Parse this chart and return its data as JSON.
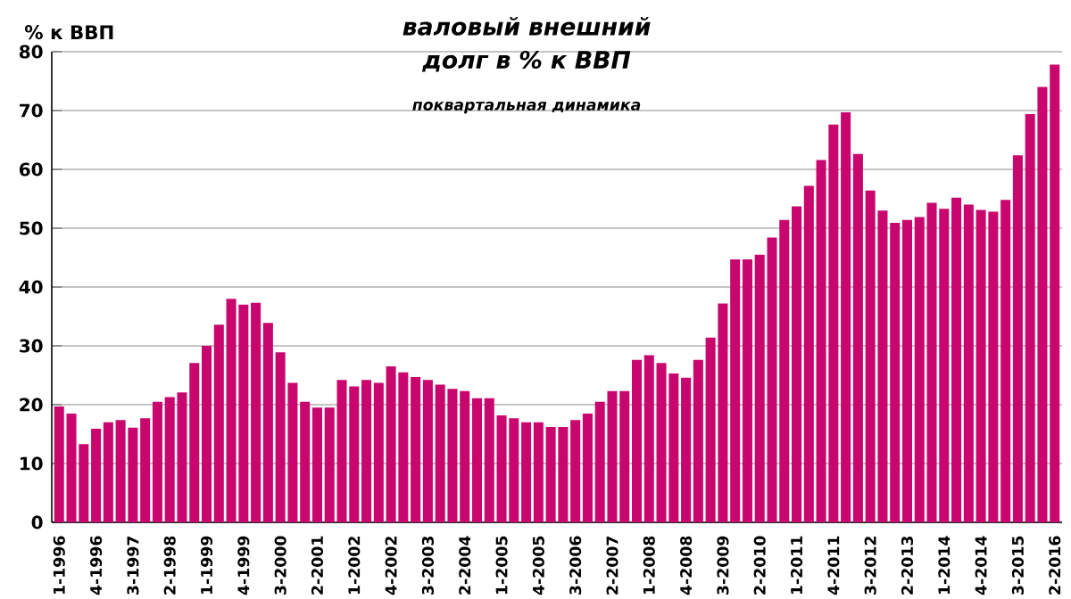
{
  "chart_data": {
    "type": "bar",
    "title": "валовый внешний долг в % к ВВП",
    "subtitle": "поквартальная динамика",
    "ylabel": "% к ВВП",
    "categories": [
      "1-1996",
      null,
      null,
      "4-1996",
      null,
      null,
      "3-1997",
      null,
      null,
      "2-1998",
      null,
      null,
      "1-1999",
      null,
      null,
      "4-1999",
      null,
      null,
      "3-2000",
      null,
      null,
      "2-2001",
      null,
      null,
      "1-2002",
      null,
      null,
      "4-2002",
      null,
      null,
      "3-2003",
      null,
      null,
      "2-2004",
      null,
      null,
      "1-2005",
      null,
      null,
      "4-2005",
      null,
      null,
      "3-2006",
      null,
      null,
      "2-2007",
      null,
      null,
      "1-2008",
      null,
      null,
      "4-2008",
      null,
      null,
      "3-2009",
      null,
      null,
      "2-2010",
      null,
      null,
      "1-2011",
      null,
      null,
      "4-2011",
      null,
      null,
      "3-2012",
      null,
      null,
      "2-2013",
      null,
      null,
      "1-2014",
      null,
      null,
      "4-2014",
      null,
      null,
      "3-2015",
      null,
      null,
      "2-2016"
    ],
    "values": [
      19.7,
      18.5,
      13.3,
      15.9,
      17.0,
      17.4,
      16.1,
      17.7,
      20.5,
      21.3,
      22.1,
      27.1,
      30.0,
      33.6,
      38.0,
      37.0,
      37.3,
      33.9,
      28.9,
      23.7,
      20.5,
      19.5,
      19.5,
      24.2,
      23.1,
      24.2,
      23.7,
      26.5,
      25.5,
      24.7,
      24.2,
      23.4,
      22.7,
      22.3,
      21.1,
      21.1,
      18.2,
      17.7,
      17.0,
      17.0,
      16.2,
      16.2,
      17.4,
      18.5,
      20.5,
      22.3,
      22.3,
      27.6,
      28.4,
      27.1,
      25.3,
      24.6,
      27.6,
      31.4,
      37.2,
      44.7,
      44.7,
      45.5,
      48.4,
      51.4,
      53.7,
      57.2,
      61.6,
      67.6,
      69.7,
      62.6,
      56.4,
      53.0,
      50.9,
      51.4,
      51.9,
      54.3,
      53.3,
      55.2,
      54.0,
      53.1,
      52.8,
      54.8,
      62.4,
      69.4,
      74.0,
      77.8
    ],
    "color": "#c8066e",
    "ylim": [
      0,
      80
    ],
    "yticks": [
      0,
      10,
      20,
      30,
      40,
      50,
      60,
      70,
      80
    ],
    "grid": "y"
  }
}
